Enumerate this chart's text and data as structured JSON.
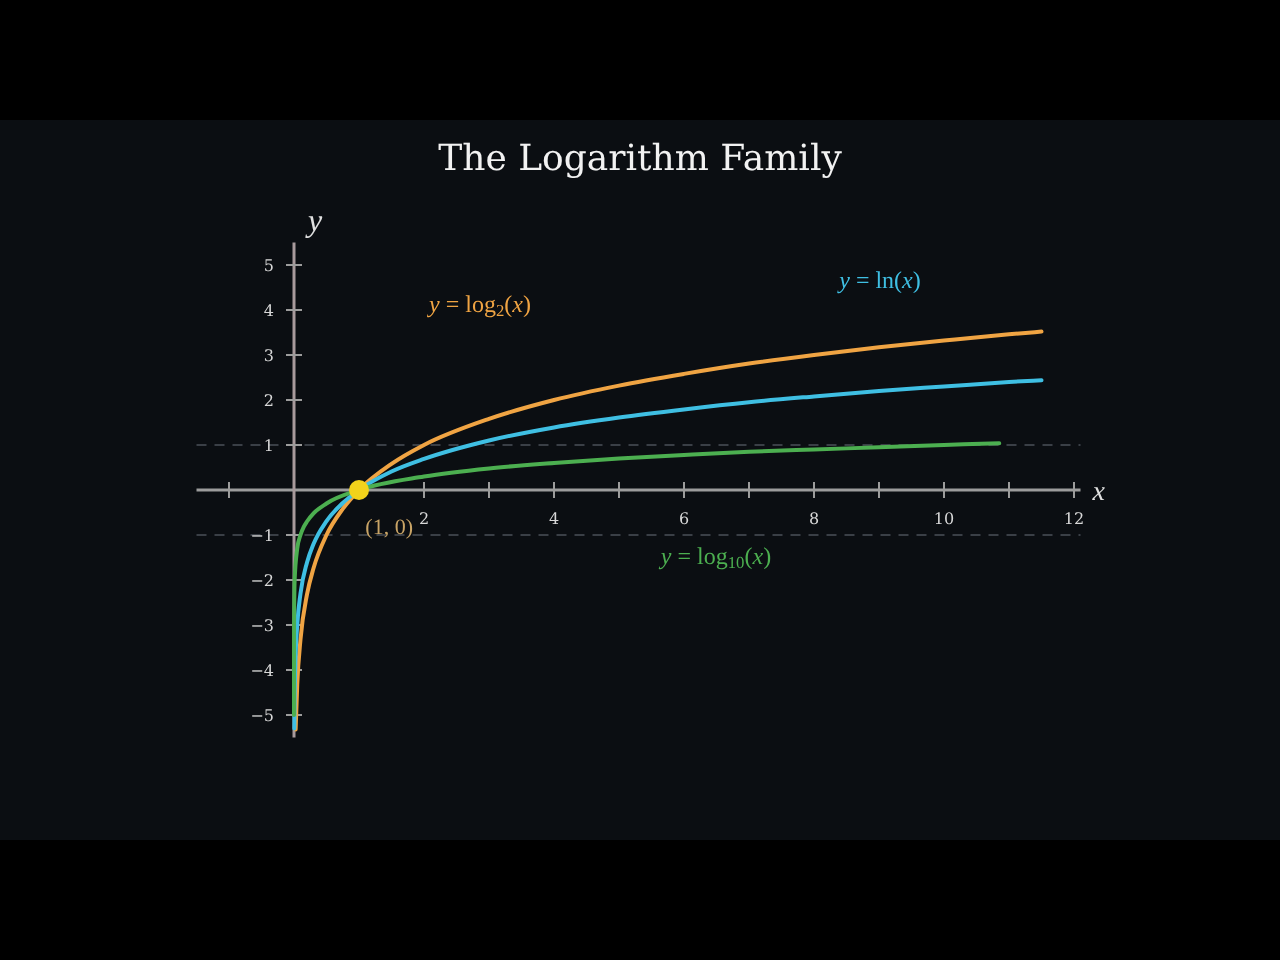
{
  "chart_data": {
    "type": "line",
    "title": "The Logarithm Family",
    "xlabel": "x",
    "ylabel": "y",
    "xlim": [
      -1.5,
      12.1
    ],
    "ylim": [
      -5.5,
      5.5
    ],
    "xticks": [
      {
        "value": -1,
        "label": null
      },
      {
        "value": 1,
        "label": null
      },
      2,
      {
        "value": 3,
        "label": null
      },
      4,
      {
        "value": 5,
        "label": null
      },
      6,
      {
        "value": 7,
        "label": null
      },
      8,
      {
        "value": 9,
        "label": null
      },
      10,
      {
        "value": 11,
        "label": null
      },
      12
    ],
    "yticks": [
      {
        "value": -5,
        "label": "−5"
      },
      {
        "value": -4,
        "label": "−4"
      },
      {
        "value": -3,
        "label": "−3"
      },
      {
        "value": -2,
        "label": "−2"
      },
      {
        "value": -1,
        "label": "−1"
      },
      1,
      2,
      3,
      4,
      5
    ],
    "grid": false,
    "ref_lines": [
      {
        "axis": "y",
        "value": 1,
        "color": "#3a3f46",
        "line_style": "dashed"
      },
      {
        "axis": "y",
        "value": -1,
        "color": "#3a3f46",
        "line_style": "dashed"
      }
    ],
    "series": [
      {
        "name": "y = log$_{2}$(x)",
        "color": "#f0a443",
        "x": [
          0.025,
          0.05,
          0.1,
          0.2,
          0.3,
          0.5,
          0.75,
          1,
          1.5,
          2,
          3,
          4,
          5,
          6,
          7,
          8,
          9,
          10,
          11,
          11.5
        ],
        "values": [
          -5.32,
          -4.32,
          -3.32,
          -2.32,
          -1.74,
          -1,
          -0.42,
          0,
          0.58,
          1,
          1.58,
          2,
          2.32,
          2.58,
          2.81,
          3,
          3.17,
          3.32,
          3.46,
          3.52
        ]
      },
      {
        "name": "y = ln(x)",
        "color": "#3fbfe3",
        "x": [
          0.005,
          0.01,
          0.02,
          0.05,
          0.1,
          0.2,
          0.3,
          0.5,
          0.75,
          1,
          1.5,
          2,
          3,
          4,
          5,
          6,
          7,
          8,
          9,
          10,
          11,
          11.5
        ],
        "values": [
          -5.3,
          -4.61,
          -3.91,
          -3,
          -2.3,
          -1.61,
          -1.2,
          -0.69,
          -0.29,
          0,
          0.41,
          0.69,
          1.1,
          1.39,
          1.61,
          1.79,
          1.95,
          2.08,
          2.2,
          2.3,
          2.4,
          2.44
        ]
      },
      {
        "name": "y = log$_{10}$(x)",
        "color": "#4caf50",
        "x": [
          1e-05,
          0.0001,
          0.001,
          0.01,
          0.05,
          0.1,
          0.15,
          0.2,
          0.3,
          0.5,
          1,
          2,
          3,
          4,
          5,
          6,
          7,
          8,
          9,
          10,
          10.85
        ],
        "values": [
          -5,
          -4,
          -3,
          -2,
          -1.3,
          -1,
          -0.82,
          -0.7,
          -0.52,
          -0.3,
          0,
          0.3,
          0.48,
          0.6,
          0.7,
          0.78,
          0.85,
          0.9,
          0.95,
          1,
          1.04
        ]
      },
      {
        "type": "scatter",
        "color": "#f2d21b",
        "marker": "circle",
        "x": [
          1
        ],
        "values": [
          0
        ]
      }
    ],
    "annotations": [
      {
        "text": "(1, 0)",
        "x": 1,
        "y": 0
      }
    ]
  }
}
